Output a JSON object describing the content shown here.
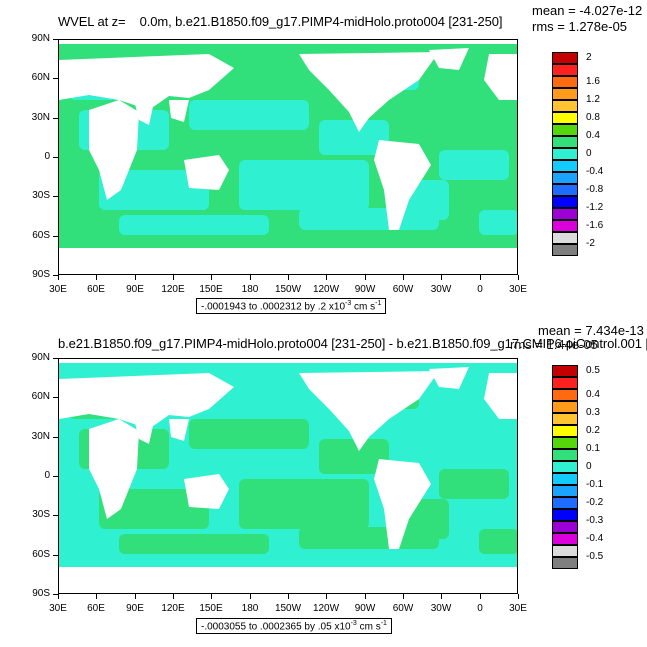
{
  "top": {
    "title_prefix": "WVEL at z=",
    "title_depth": "0.0m,",
    "title_case": "b.e21.B1850.f09_g17.PIMP4-midHolo.proto004 [231-250]",
    "mean": "mean = -4.027e-12",
    "rms": "rms = 1.278e-05",
    "range_text": "-.0001943 to .0002312 by .2 x10",
    "range_exp": "-3",
    "range_unit": " cm s",
    "range_unit_exp": "-1",
    "legend_labels": [
      "2",
      "1.6",
      "1.2",
      "0.8",
      "0.4",
      "0",
      "-0.4",
      "-0.8",
      "-1.2",
      "-1.6",
      "-2"
    ]
  },
  "bottom": {
    "title": "b.e21.B1850.f09_g17.PIMP4-midHolo.proto004 [231-250] - b.e21.B1850.f09_g17.CMIP6-piControl.001 [",
    "mean": "mean = 7.434e-13",
    "rms": "rms = 1.44e-05",
    "range_text": "-.0003055 to .0002365 by .05 x10",
    "range_exp": "-3",
    "range_unit": " cm s",
    "range_unit_exp": "-1",
    "legend_labels": [
      "0.5",
      "0.4",
      "0.3",
      "0.2",
      "0.1",
      "0",
      "-0.1",
      "-0.2",
      "-0.3",
      "-0.4",
      "-0.5"
    ]
  },
  "axes": {
    "lat_labels": [
      "90N",
      "60N",
      "30N",
      "0",
      "30S",
      "60S",
      "90S"
    ],
    "lon_labels": [
      "30E",
      "60E",
      "90E",
      "120E",
      "150E",
      "180",
      "150W",
      "120W",
      "90W",
      "60W",
      "30W",
      "0",
      "30E"
    ]
  },
  "legend_colors": [
    "#c40000",
    "#ff2020",
    "#ff6a10",
    "#ff9a1a",
    "#ffc430",
    "#ffff00",
    "#54d80c",
    "#31e07a",
    "#2ff0d0",
    "#12ccff",
    "#1aa3ff",
    "#1f6dff",
    "#0000ff",
    "#9b00d4",
    "#dc00dc",
    "#dcdcdc",
    "#7f7f7f"
  ],
  "map_colors": {
    "ocean_top": "#31e07a",
    "ocean_top_alt": "#2ff0d0",
    "ocean_bottom": "#2ff0d0",
    "ocean_bottom_alt": "#31e07a",
    "land": "#ffffff"
  }
}
